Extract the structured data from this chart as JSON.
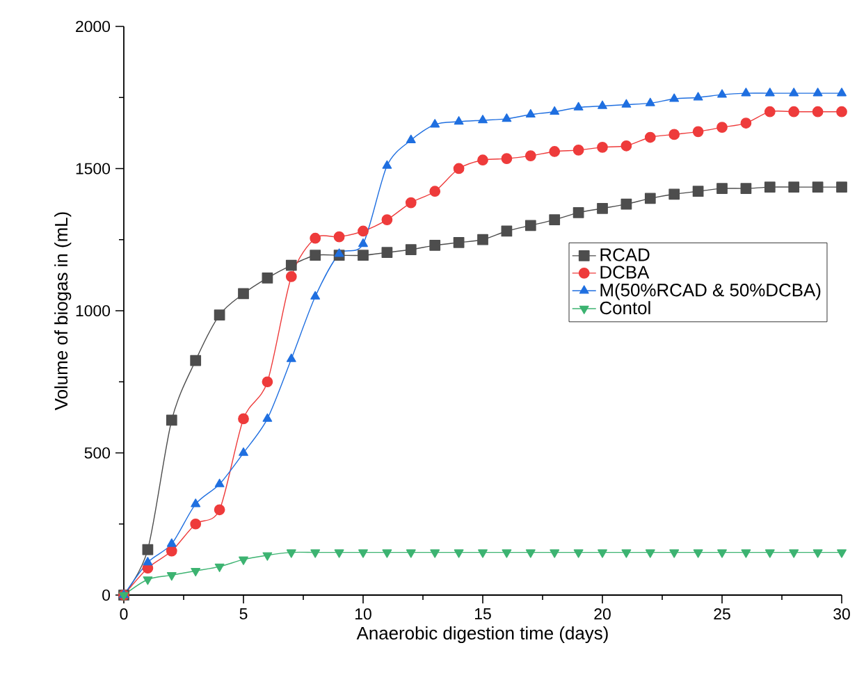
{
  "chart_data": {
    "type": "line",
    "xlabel": "Anaerobic digestion time (days)",
    "ylabel": "Volume of biogas in (mL)",
    "x": [
      0,
      1,
      2,
      3,
      4,
      5,
      6,
      7,
      8,
      9,
      10,
      11,
      12,
      13,
      14,
      15,
      16,
      17,
      18,
      19,
      20,
      21,
      22,
      23,
      24,
      25,
      26,
      27,
      28,
      29,
      30
    ],
    "series": [
      {
        "name": "RCAD",
        "color": "#4d4d4d",
        "marker": "square",
        "values": [
          0,
          160,
          615,
          825,
          985,
          1060,
          1115,
          1160,
          1195,
          1195,
          1195,
          1205,
          1215,
          1230,
          1240,
          1250,
          1280,
          1300,
          1320,
          1345,
          1360,
          1375,
          1395,
          1410,
          1420,
          1430,
          1430,
          1435,
          1435,
          1435,
          1435
        ]
      },
      {
        "name": "DCBA",
        "color": "#ee3b3b",
        "marker": "circle",
        "values": [
          0,
          95,
          155,
          250,
          300,
          620,
          750,
          1120,
          1255,
          1260,
          1280,
          1320,
          1380,
          1420,
          1500,
          1530,
          1535,
          1545,
          1560,
          1565,
          1575,
          1580,
          1610,
          1620,
          1630,
          1645,
          1660,
          1700,
          1700,
          1700,
          1700
        ]
      },
      {
        "name": "M(50%RCAD & 50%DCBA)",
        "color": "#1f6fe0",
        "marker": "triangle",
        "values": [
          0,
          115,
          180,
          320,
          390,
          500,
          620,
          830,
          1050,
          1200,
          1235,
          1510,
          1600,
          1655,
          1665,
          1670,
          1675,
          1690,
          1700,
          1715,
          1720,
          1725,
          1730,
          1745,
          1750,
          1760,
          1765,
          1765,
          1765,
          1765,
          1765
        ]
      },
      {
        "name": "Contol",
        "color": "#3cb371",
        "marker": "triangle-down",
        "values": [
          0,
          55,
          70,
          85,
          100,
          125,
          140,
          150,
          150,
          150,
          150,
          150,
          150,
          150,
          150,
          150,
          150,
          150,
          150,
          150,
          150,
          150,
          150,
          150,
          150,
          150,
          150,
          150,
          150,
          150,
          150
        ]
      }
    ],
    "xlim": [
      0,
      30
    ],
    "xticks": [
      0,
      5,
      10,
      15,
      20,
      25,
      30
    ],
    "ylim": [
      0,
      2000
    ],
    "yticks": [
      0,
      500,
      1000,
      1500,
      2000
    ],
    "grid": false,
    "legend": "right",
    "line_style": "solid"
  }
}
